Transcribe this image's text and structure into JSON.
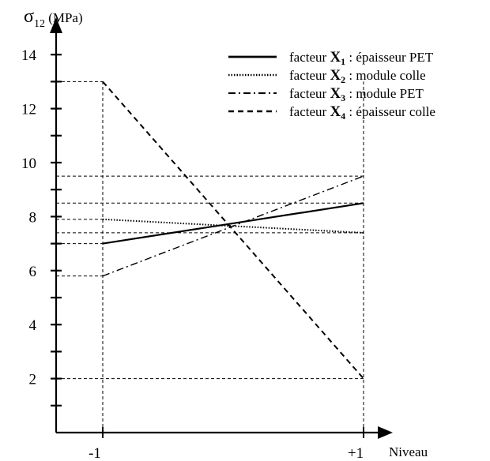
{
  "chart_data": {
    "type": "line",
    "xlabel": "Niveau",
    "ylabel": {
      "symbol": "σ",
      "subscript": "12",
      "unit": "(MPa)"
    },
    "x_ticks": [
      {
        "value": -1,
        "label": "-1"
      },
      {
        "value": 1,
        "label": "+1"
      }
    ],
    "y_ticks": [
      2,
      4,
      6,
      8,
      10,
      12,
      14
    ],
    "y_tick_labels": [
      "2",
      "4",
      "6",
      "8",
      "10",
      "12",
      "14"
    ],
    "ylim": [
      0,
      15
    ],
    "xlim": [
      -1.85,
      1.2
    ],
    "grid": false,
    "legend_position": "top-right",
    "series": [
      {
        "name_prefix": "facteur ",
        "name_bold": "X",
        "name_sub": "1",
        "name_suffix": " : épaisseur PET",
        "style": "solid",
        "x": [
          -1,
          1
        ],
        "values": [
          7.0,
          8.5
        ]
      },
      {
        "name_prefix": "facteur ",
        "name_bold": "X",
        "name_sub": "2",
        "name_suffix": " : module colle",
        "style": "dotted",
        "x": [
          -1,
          1
        ],
        "values": [
          7.9,
          7.4
        ]
      },
      {
        "name_prefix": "facteur ",
        "name_bold": "X",
        "name_sub": "3",
        "name_suffix": " : module PET",
        "style": "dashdot",
        "x": [
          -1,
          1
        ],
        "values": [
          5.8,
          9.5
        ]
      },
      {
        "name_prefix": "facteur ",
        "name_bold": "X",
        "name_sub": "4",
        "name_suffix": " : épaisseur colle",
        "style": "dashed",
        "x": [
          -1,
          1
        ],
        "values": [
          13.0,
          2.0
        ]
      }
    ]
  }
}
